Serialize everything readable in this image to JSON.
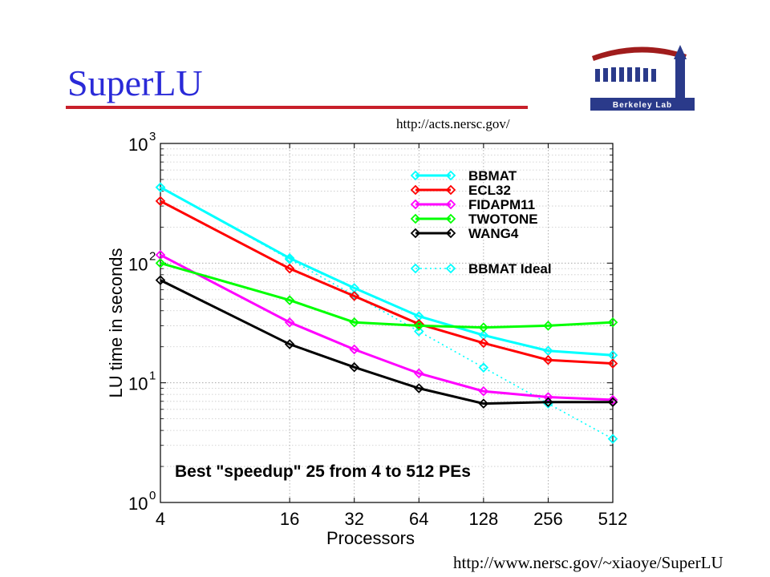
{
  "slide": {
    "title": "SuperLU",
    "url_top": "http://acts.nersc.gov/",
    "url_bottom": "http://www.nersc.gov/~xiaoye/SuperLU",
    "logo_text": "Berkeley Lab",
    "colors": {
      "title": "#2a2ad8",
      "rule": "#c8202a",
      "logo": "#2a3a8a",
      "logo_roof": "#a01c1c"
    }
  },
  "chart_data": {
    "type": "line",
    "xlabel": "Processors",
    "ylabel": "LU time in seconds",
    "x_scale": "log2",
    "y_scale": "log10",
    "x": [
      4,
      16,
      32,
      64,
      128,
      256,
      512
    ],
    "x_tick_labels": [
      "4",
      "16",
      "32",
      "64",
      "128",
      "256",
      "512"
    ],
    "ylim": [
      1,
      1000
    ],
    "y_ticks": [
      {
        "value": 1,
        "base": "10",
        "exp": "0"
      },
      {
        "value": 10,
        "base": "10",
        "exp": "1"
      },
      {
        "value": 100,
        "base": "10",
        "exp": "2"
      },
      {
        "value": 1000,
        "base": "10",
        "exp": "3"
      }
    ],
    "grid": true,
    "legend_position": "top-right",
    "annotation": "Best \"speedup\" 25 from 4 to 512 PEs",
    "marker": "diamond",
    "series": [
      {
        "name": "BBMAT",
        "color": "#00ffff",
        "dashed": false,
        "values": [
          430,
          110,
          62,
          36,
          25,
          18.5,
          17
        ]
      },
      {
        "name": "ECL32",
        "color": "#ff0000",
        "dashed": false,
        "values": [
          330,
          90,
          53,
          31,
          21.5,
          15.5,
          14.5
        ]
      },
      {
        "name": "FIDAPM11",
        "color": "#ff00ff",
        "dashed": false,
        "values": [
          117,
          32,
          19,
          12,
          8.5,
          7.6,
          7.2
        ]
      },
      {
        "name": "TWOTONE",
        "color": "#00ff00",
        "dashed": false,
        "values": [
          100,
          49,
          32,
          30,
          29,
          30,
          32
        ]
      },
      {
        "name": "WANG4",
        "color": "#000000",
        "dashed": false,
        "values": [
          72,
          21,
          13.5,
          9,
          6.7,
          6.9,
          6.9
        ]
      },
      {
        "name": "BBMAT Ideal",
        "color": "#00ffff",
        "dashed": true,
        "values": [
          430,
          107.5,
          53.8,
          26.9,
          13.4,
          6.7,
          3.4
        ]
      }
    ]
  }
}
